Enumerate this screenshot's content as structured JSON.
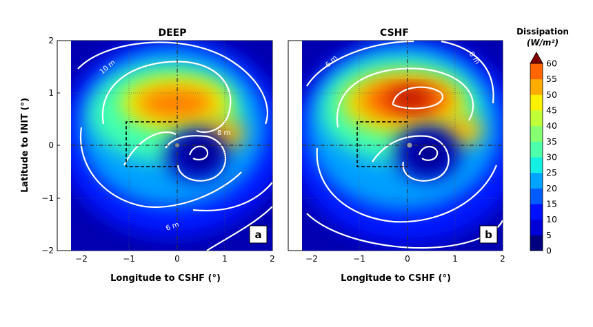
{
  "chart_data": [
    {
      "type": "heatmap",
      "panel": "a",
      "title": "DEEP",
      "xlabel": "Longitude to CSHF (°)",
      "ylabel": "Latitude to INIT (°)",
      "xlim": [
        -2.2,
        2.0
      ],
      "ylim": [
        -2.0,
        2.0
      ],
      "xticks": [
        -2,
        -1,
        0,
        1,
        2
      ],
      "yticks": [
        -2,
        -1,
        0,
        1,
        2
      ],
      "xtick_labels": [
        "−2",
        "−1",
        "0",
        "1",
        "2"
      ],
      "ytick_labels": [
        "−2",
        "−1",
        "0",
        "1",
        "2"
      ],
      "field_maxima": [
        {
          "x": 0.0,
          "y": 0.8,
          "value": 50,
          "extent": 1.0
        },
        {
          "x": 0.8,
          "y": 0.3,
          "value": 45,
          "extent": 0.7
        }
      ],
      "low_center": {
        "x": 0.45,
        "y": -0.15,
        "value": 2
      },
      "contour_labels": [
        {
          "text": "10 m",
          "x": -1.6,
          "y": 1.35
        },
        {
          "text": "8 m",
          "x": 0.95,
          "y": 0.25
        },
        {
          "text": "6 m",
          "x": -0.1,
          "y": -1.55
        }
      ],
      "box": {
        "x": [
          -1.05,
          0.0
        ],
        "y": [
          -0.42,
          0.45
        ]
      }
    },
    {
      "type": "heatmap",
      "panel": "b",
      "title": "CSHF",
      "xlabel": "Longitude to CSHF (°)",
      "ylabel": "",
      "xlim": [
        -2.2,
        2.0
      ],
      "ylim": [
        -2.0,
        2.0
      ],
      "xticks": [
        -2,
        -1,
        0,
        1,
        2
      ],
      "xtick_labels": [
        "−2",
        "−1",
        "0",
        "1",
        "2"
      ],
      "field_maxima": [
        {
          "x": -0.1,
          "y": 0.85,
          "value": 60,
          "extent": 1.1
        },
        {
          "x": 0.9,
          "y": 0.4,
          "value": 45,
          "extent": 0.7
        }
      ],
      "low_center": {
        "x": 0.45,
        "y": -0.15,
        "value": 2
      },
      "contour_labels": [
        {
          "text": "6 m",
          "x": -1.5,
          "y": 1.65
        },
        {
          "text": "8 m",
          "x": 1.35,
          "y": 1.65
        }
      ],
      "box": {
        "x": [
          -1.05,
          0.0
        ],
        "y": [
          -0.42,
          0.45
        ]
      }
    }
  ],
  "colorbar": {
    "title": "Dissipation",
    "unit": "(W/m²)",
    "min": 0,
    "max": 60,
    "ticks": [
      0,
      5,
      10,
      15,
      20,
      25,
      30,
      35,
      40,
      45,
      50,
      55,
      60
    ],
    "colors": [
      "#00007f",
      "#0000d8",
      "#0010ff",
      "#005cff",
      "#00a4ff",
      "#13f0e3",
      "#4dffaa",
      "#86ff71",
      "#c0ff37",
      "#f9f100",
      "#ffac00",
      "#ff6600",
      "#e71f00"
    ],
    "extend_color": "#800000"
  }
}
